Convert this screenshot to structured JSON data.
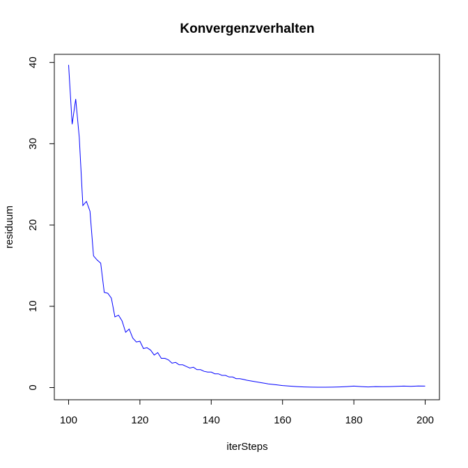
{
  "chart_data": {
    "type": "line",
    "title": "Konvergenzverhalten",
    "xlabel": "iterSteps",
    "ylabel": "residuum",
    "xlim": [
      96,
      204
    ],
    "ylim": [
      -1.5,
      41
    ],
    "xticks": [
      100,
      120,
      140,
      160,
      180,
      200
    ],
    "yticks": [
      0,
      10,
      20,
      30,
      40
    ],
    "grid": false,
    "legend": "none",
    "line_color": "#0000ff",
    "series": [
      {
        "x": [
          100,
          101,
          102,
          103,
          104,
          105,
          106,
          107,
          108,
          109,
          110,
          111,
          112,
          113,
          114,
          115,
          116,
          117,
          118,
          119,
          120,
          121,
          122,
          123,
          124,
          125,
          126,
          127,
          128,
          129,
          130,
          131,
          132,
          133,
          134,
          135,
          136,
          137,
          138,
          139,
          140,
          141,
          142,
          143,
          144,
          145,
          146,
          147,
          148,
          149,
          150,
          152,
          154,
          156,
          158,
          160,
          162,
          164,
          166,
          168,
          170,
          172,
          174,
          176,
          178,
          180,
          182,
          184,
          186,
          188,
          190,
          192,
          194,
          196,
          198,
          200
        ],
        "y": [
          39.7,
          32.4,
          35.5,
          30.8,
          22.4,
          22.9,
          21.7,
          16.2,
          15.7,
          15.3,
          11.7,
          11.6,
          11.0,
          8.7,
          8.9,
          8.2,
          6.8,
          7.2,
          6.1,
          5.6,
          5.7,
          4.8,
          4.9,
          4.6,
          4.0,
          4.3,
          3.6,
          3.6,
          3.4,
          3.0,
          3.1,
          2.8,
          2.8,
          2.6,
          2.4,
          2.5,
          2.2,
          2.2,
          2.0,
          1.9,
          1.9,
          1.7,
          1.7,
          1.5,
          1.5,
          1.3,
          1.3,
          1.1,
          1.1,
          1.0,
          0.9,
          0.75,
          0.6,
          0.45,
          0.35,
          0.25,
          0.18,
          0.12,
          0.08,
          0.05,
          0.04,
          0.04,
          0.05,
          0.08,
          0.12,
          0.18,
          0.12,
          0.08,
          0.12,
          0.1,
          0.12,
          0.15,
          0.18,
          0.15,
          0.2,
          0.18
        ]
      }
    ]
  }
}
